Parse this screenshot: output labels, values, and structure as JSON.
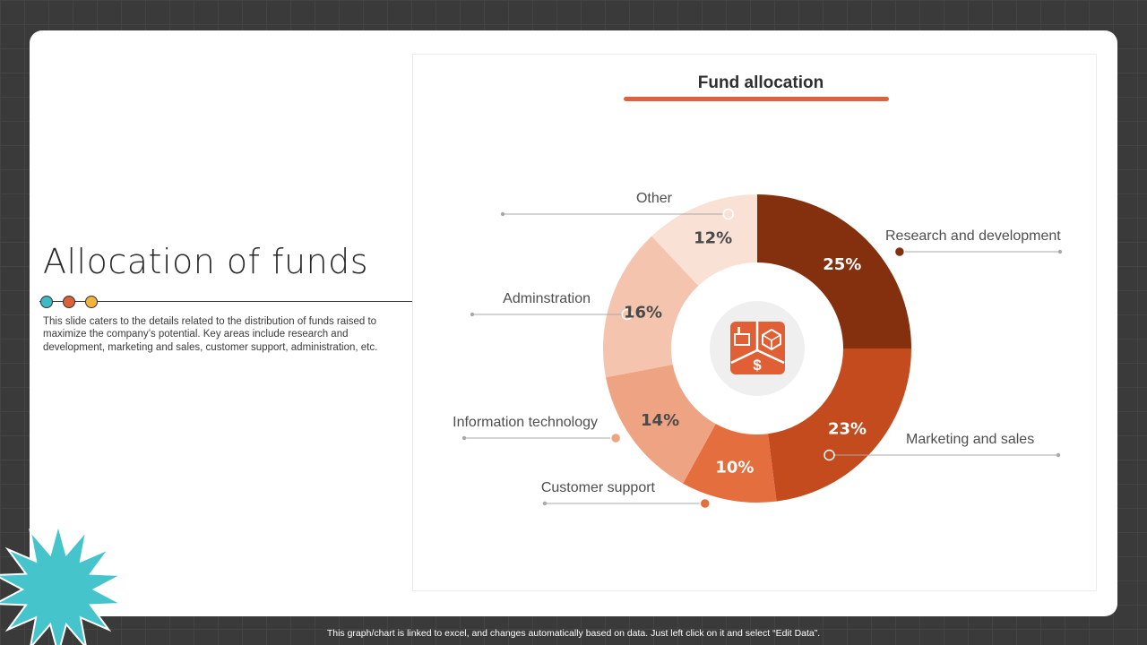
{
  "slide": {
    "title": "Allocation of funds",
    "description": "This slide caters to the details related to the distribution of funds raised to maximize the company’s potential. Key areas include research and development, marketing and sales, customer support, administration, etc.",
    "footer": "This graph/chart is linked to excel, and changes automatically based on data. Just left click on it and select “Edit Data”.",
    "dot_colors": [
      "#3fb9c4",
      "#d9623a",
      "#f2b33e"
    ],
    "starburst_color": "#45c4cc"
  },
  "chart_data": {
    "type": "pie",
    "title": "Fund allocation",
    "center_icon": "business-funding-icon",
    "slices": [
      {
        "label": "Research and development",
        "value": 25,
        "value_label": "25%",
        "color": "#84300f"
      },
      {
        "label": "Marketing and sales",
        "value": 23,
        "value_label": "23%",
        "color": "#c34b1e"
      },
      {
        "label": "Customer support",
        "value": 10,
        "value_label": "10%",
        "color": "#e46e3e"
      },
      {
        "label": "Information technology",
        "value": 14,
        "value_label": "14%",
        "color": "#eea383"
      },
      {
        "label": "Adminstration",
        "value": 16,
        "value_label": "16%",
        "color": "#f4c4ae"
      },
      {
        "label": "Other",
        "value": 12,
        "value_label": "12%",
        "color": "#fae1d6"
      }
    ]
  }
}
